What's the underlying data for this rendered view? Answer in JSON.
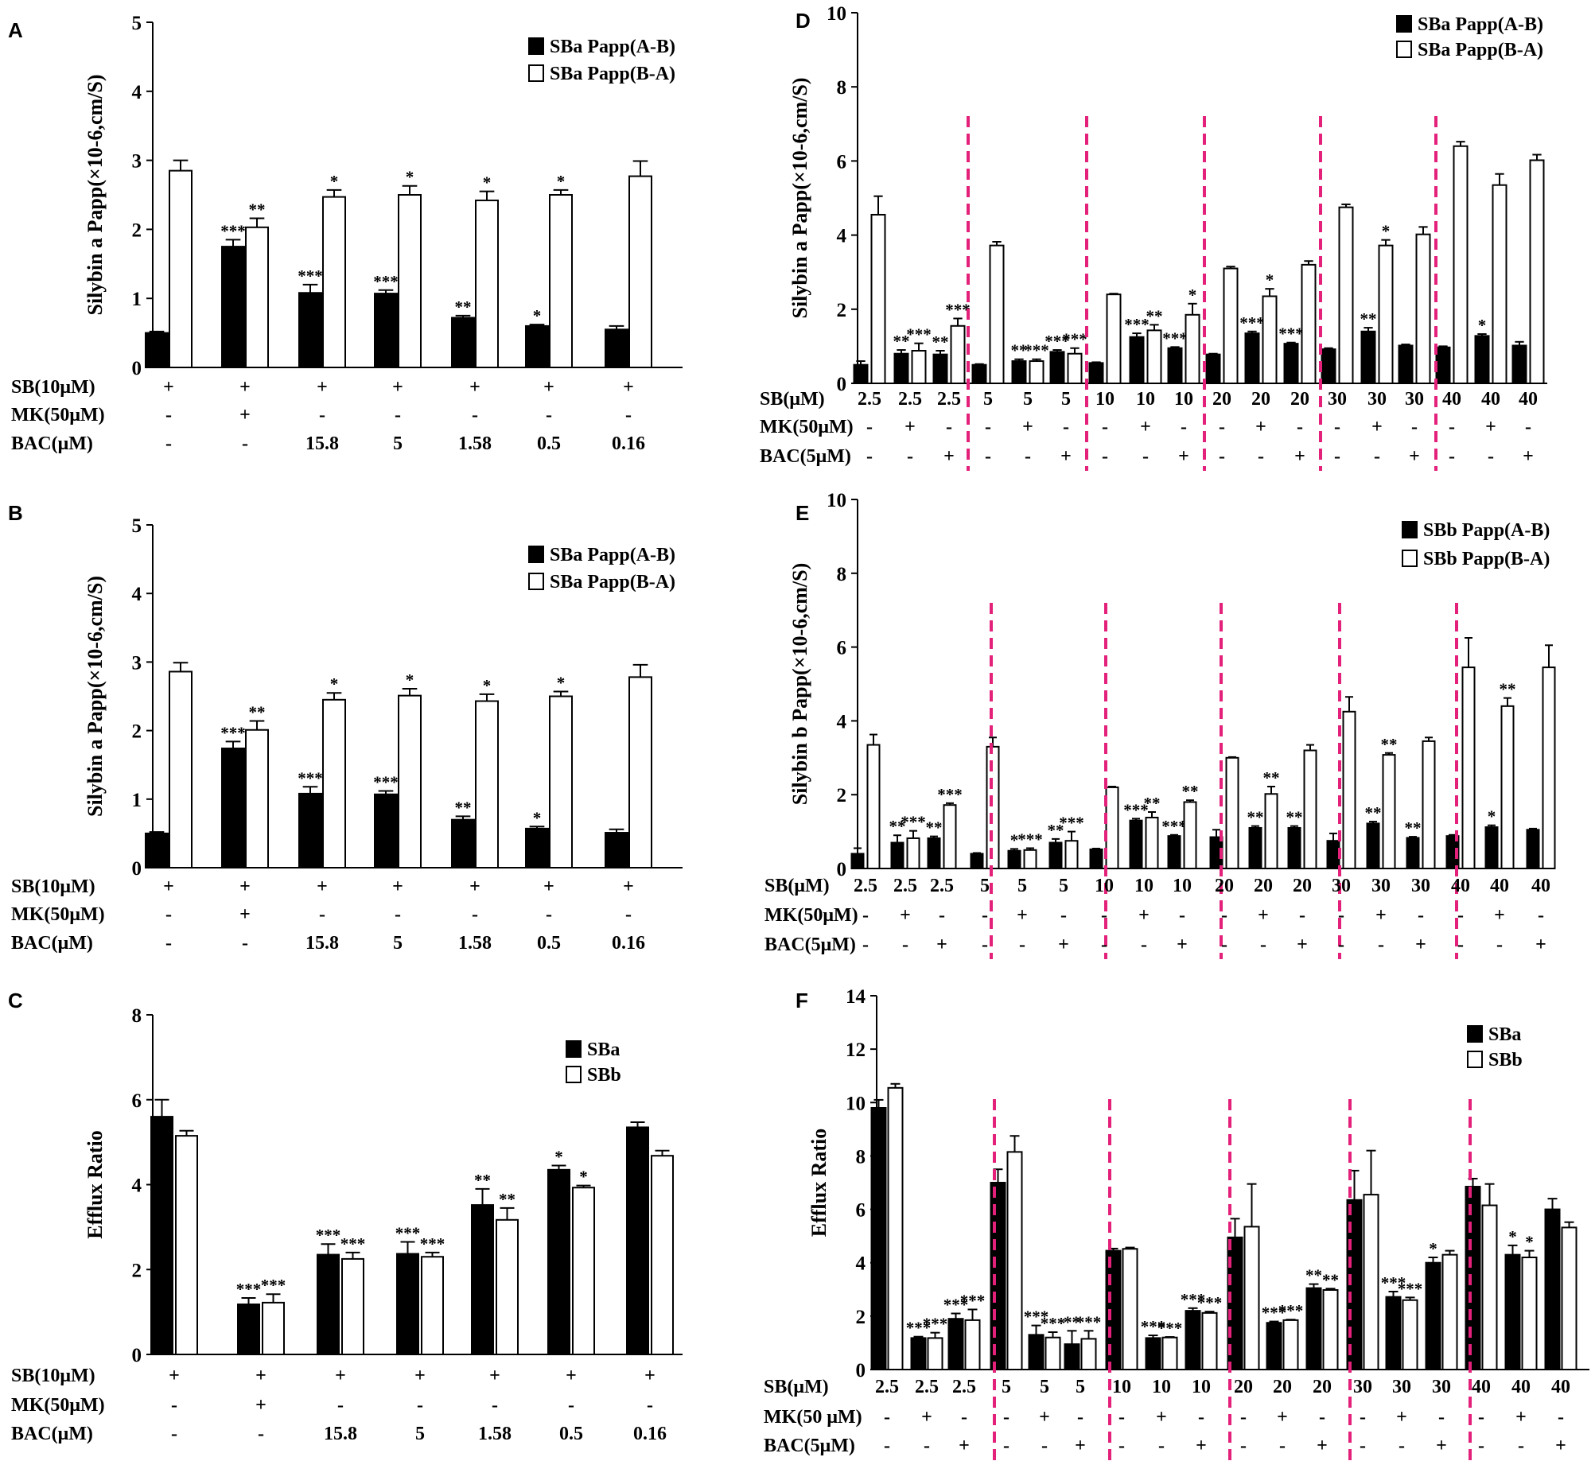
{
  "colors": {
    "filled": "#000000",
    "open": "#ffffff",
    "axis": "#000000",
    "divider": "#e3217a"
  },
  "chart_data": [
    {
      "panel": "A",
      "type": "bar",
      "ylabel": "Silybin a Papp(×10-6,cm/S)",
      "ylim": [
        0,
        5
      ],
      "yticks": [
        "0",
        "1",
        "2",
        "3",
        "4",
        "5"
      ],
      "legend": [
        "SBa Papp(A-B)",
        "SBa Papp(B-A)"
      ],
      "row_labels": [
        "SB(10μM)",
        "MK(50μM)",
        "BAC(μM)"
      ],
      "row_values": [
        [
          "+",
          "+",
          "+",
          "+",
          "+",
          "+",
          "+"
        ],
        [
          "-",
          "+",
          "-",
          "-",
          "-",
          "-",
          "-"
        ],
        [
          "-",
          "-",
          "15.8",
          "5",
          "1.58",
          "0.5",
          "0.16"
        ]
      ],
      "series": [
        {
          "name": "SBa Papp(A-B)",
          "values": [
            0.5,
            1.75,
            1.08,
            1.07,
            0.72,
            0.6,
            0.55
          ],
          "errors": [
            0.02,
            0.1,
            0.12,
            0.05,
            0.03,
            0.02,
            0.05
          ],
          "stars": [
            "",
            "***",
            "***",
            "***",
            "**",
            "*",
            ""
          ]
        },
        {
          "name": "SBa Papp(B-A)",
          "values": [
            2.85,
            2.03,
            2.47,
            2.5,
            2.42,
            2.5,
            2.77
          ],
          "errors": [
            0.15,
            0.13,
            0.1,
            0.13,
            0.13,
            0.07,
            0.22
          ],
          "stars": [
            "",
            "**",
            "*",
            "*",
            "*",
            "*",
            ""
          ]
        }
      ]
    },
    {
      "panel": "B",
      "type": "bar",
      "ylabel": "Silybin a Papp(×10-6,cm/S)",
      "ylim": [
        0,
        5
      ],
      "yticks": [
        "0",
        "1",
        "2",
        "3",
        "4",
        "5"
      ],
      "legend": [
        "SBa Papp(A-B)",
        "SBa Papp(B-A)"
      ],
      "row_labels": [
        "SB(10μM)",
        "MK(50μM)",
        "BAC(μM)"
      ],
      "row_values": [
        [
          "+",
          "+",
          "+",
          "+",
          "+",
          "+",
          "+"
        ],
        [
          "-",
          "+",
          "-",
          "-",
          "-",
          "-",
          "-"
        ],
        [
          "-",
          "-",
          "15.8",
          "5",
          "1.58",
          "0.5",
          "0.16"
        ]
      ],
      "series": [
        {
          "name": "SBa Papp(A-B)",
          "values": [
            0.5,
            1.74,
            1.08,
            1.07,
            0.7,
            0.57,
            0.51
          ],
          "errors": [
            0.02,
            0.1,
            0.1,
            0.05,
            0.05,
            0.03,
            0.05
          ],
          "stars": [
            "",
            "***",
            "***",
            "***",
            "**",
            "*",
            ""
          ]
        },
        {
          "name": "SBa Papp(B-A)",
          "values": [
            2.86,
            2.01,
            2.45,
            2.51,
            2.43,
            2.5,
            2.78
          ],
          "errors": [
            0.13,
            0.13,
            0.1,
            0.1,
            0.1,
            0.07,
            0.18
          ],
          "stars": [
            "",
            "**",
            "*",
            "*",
            "*",
            "*",
            ""
          ]
        }
      ]
    },
    {
      "panel": "C",
      "type": "bar",
      "ylabel": "Efflux Ratio",
      "ylim": [
        0,
        8
      ],
      "yticks": [
        "0",
        "2",
        "4",
        "6",
        "8"
      ],
      "legend": [
        "SBa",
        "SBb"
      ],
      "row_labels": [
        "SB(10μM)",
        "MK(50μM)",
        "BAC(μM)"
      ],
      "row_values": [
        [
          "+",
          "+",
          "+",
          "+",
          "+",
          "+",
          "+"
        ],
        [
          "-",
          "+",
          "-",
          "-",
          "-",
          "-",
          "-"
        ],
        [
          "-",
          "-",
          "15.8",
          "5",
          "1.58",
          "0.5",
          "0.16"
        ]
      ],
      "series": [
        {
          "name": "SBa",
          "values": [
            5.6,
            1.18,
            2.35,
            2.37,
            3.52,
            4.35,
            5.35
          ],
          "errors": [
            0.4,
            0.15,
            0.25,
            0.28,
            0.38,
            0.1,
            0.12
          ],
          "stars": [
            "",
            "***",
            "***",
            "***",
            "**",
            "*",
            ""
          ]
        },
        {
          "name": "SBb",
          "values": [
            5.15,
            1.22,
            2.25,
            2.3,
            3.17,
            3.93,
            4.68
          ],
          "errors": [
            0.12,
            0.2,
            0.15,
            0.1,
            0.28,
            0.05,
            0.12
          ],
          "stars": [
            "",
            "***",
            "***",
            "***",
            "**",
            "*",
            ""
          ]
        }
      ]
    },
    {
      "panel": "D",
      "type": "bar",
      "ylabel": "Silybin a Papp(×10-6,cm/S)",
      "ylim": [
        0,
        10
      ],
      "yticks": [
        "0",
        "2",
        "4",
        "6",
        "8",
        "10"
      ],
      "legend": [
        "SBa Papp(A-B)",
        "SBa Papp(B-A)"
      ],
      "row_labels": [
        "SB(μM)",
        "MK(50μM)",
        "BAC(5μM)"
      ],
      "row_values": [
        [
          "2.5",
          "2.5",
          "2.5",
          "5",
          "5",
          "5",
          "10",
          "10",
          "10",
          "20",
          "20",
          "20",
          "30",
          "30",
          "30",
          "40",
          "40",
          "40"
        ],
        [
          "-",
          "+",
          "-",
          "-",
          "+",
          "-",
          "-",
          "+",
          "-",
          "-",
          "+",
          "-",
          "-",
          "+",
          "-",
          "-",
          "+",
          "-"
        ],
        [
          "-",
          "-",
          "+",
          "-",
          "-",
          "+",
          "-",
          "-",
          "+",
          "-",
          "-",
          "+",
          "-",
          "-",
          "+",
          "-",
          "-",
          "+"
        ]
      ],
      "series": [
        {
          "name": "SBa Papp(A-B)",
          "values": [
            0.5,
            0.8,
            0.78,
            0.5,
            0.6,
            0.85,
            0.55,
            1.25,
            0.95,
            0.78,
            1.35,
            1.07,
            0.92,
            1.4,
            1.02,
            0.97,
            1.28,
            1.02
          ],
          "errors": [
            0.1,
            0.1,
            0.1,
            0.02,
            0.05,
            0.05,
            0.02,
            0.1,
            0.03,
            0.02,
            0.05,
            0.03,
            0.03,
            0.1,
            0.03,
            0.03,
            0.05,
            0.1
          ],
          "stars": [
            "",
            "**",
            "**",
            "",
            "**",
            "***",
            "",
            "***",
            "***",
            "",
            "***",
            "***",
            "",
            "**",
            "",
            "",
            "*",
            ""
          ]
        },
        {
          "name": "SBa Papp(B-A)",
          "values": [
            4.55,
            0.88,
            1.55,
            3.72,
            0.6,
            0.8,
            2.4,
            1.43,
            1.85,
            3.1,
            2.35,
            3.2,
            4.75,
            3.72,
            4.02,
            6.4,
            5.35,
            6.02
          ],
          "errors": [
            0.5,
            0.2,
            0.2,
            0.1,
            0.05,
            0.15,
            0.02,
            0.15,
            0.3,
            0.05,
            0.2,
            0.1,
            0.08,
            0.15,
            0.2,
            0.12,
            0.3,
            0.15
          ],
          "stars": [
            "",
            "***",
            "***",
            "",
            "***",
            "***",
            "",
            "**",
            "*",
            "",
            "*",
            "",
            "",
            "*",
            "",
            "",
            "",
            ""
          ]
        }
      ],
      "dividers": [
        "2.5|5",
        "5|10",
        "10|20",
        "20|30",
        "30|40"
      ]
    },
    {
      "panel": "E",
      "type": "bar",
      "ylabel": "Silybin b Papp(×10-6,cm/S)",
      "ylim": [
        0,
        10
      ],
      "yticks": [
        "0",
        "2",
        "4",
        "6",
        "8",
        "10"
      ],
      "legend": [
        "SBb Papp(A-B)",
        "SBb Papp(B-A)"
      ],
      "row_labels": [
        "SB(μM)",
        "MK(50μM)",
        "BAC(5μM)"
      ],
      "row_values": [
        [
          "2.5",
          "2.5",
          "2.5",
          "5",
          "5",
          "5",
          "10",
          "10",
          "10",
          "20",
          "20",
          "20",
          "30",
          "30",
          "30",
          "40",
          "40",
          "40"
        ],
        [
          "-",
          "+",
          "-",
          "-",
          "+",
          "-",
          "-",
          "+",
          "-",
          "-",
          "+",
          "-",
          "-",
          "+",
          "-",
          "-",
          "+",
          "-"
        ],
        [
          "-",
          "-",
          "+",
          "-",
          "-",
          "+",
          "-",
          "-",
          "+",
          "-",
          "-",
          "+",
          "-",
          "-",
          "+",
          "-",
          "-",
          "+"
        ]
      ],
      "series": [
        {
          "name": "SBb Papp(A-B)",
          "values": [
            0.4,
            0.7,
            0.82,
            0.4,
            0.48,
            0.7,
            0.52,
            1.3,
            0.88,
            0.85,
            1.1,
            1.1,
            0.75,
            1.22,
            0.83,
            0.88,
            1.12,
            1.05
          ],
          "errors": [
            0.15,
            0.2,
            0.05,
            0.02,
            0.05,
            0.1,
            0.02,
            0.05,
            0.03,
            0.2,
            0.05,
            0.05,
            0.2,
            0.05,
            0.03,
            0.03,
            0.05,
            0.03
          ],
          "stars": [
            "",
            "**",
            "**",
            "",
            "*",
            "**",
            "",
            "***",
            "***",
            "",
            "**",
            "**",
            "",
            "**",
            "**",
            "",
            "*",
            ""
          ]
        },
        {
          "name": "SBb Papp(B-A)",
          "values": [
            3.35,
            0.82,
            1.72,
            3.3,
            0.5,
            0.75,
            2.2,
            1.38,
            1.8,
            3.0,
            2.02,
            3.2,
            4.25,
            3.08,
            3.45,
            5.45,
            4.4,
            5.45
          ],
          "errors": [
            0.28,
            0.2,
            0.05,
            0.25,
            0.05,
            0.25,
            0.02,
            0.15,
            0.05,
            0.02,
            0.2,
            0.15,
            0.4,
            0.05,
            0.1,
            0.8,
            0.22,
            0.6
          ],
          "stars": [
            "",
            "***",
            "***",
            "",
            "***",
            "***",
            "",
            "**",
            "**",
            "",
            "**",
            "",
            "",
            "**",
            "",
            "",
            "**",
            ""
          ]
        }
      ],
      "dividers": [
        "2.5|5",
        "5|10",
        "10|20",
        "20|30",
        "30|40"
      ]
    },
    {
      "panel": "F",
      "type": "bar",
      "ylabel": "Efflux Ratio",
      "ylim": [
        0,
        14
      ],
      "yticks": [
        "0",
        "2",
        "4",
        "6",
        "8",
        "10",
        "12",
        "14"
      ],
      "legend": [
        "SBa",
        "SBb"
      ],
      "row_labels": [
        "SB(μM)",
        "MK(50 μM)",
        "BAC(5μM)"
      ],
      "row_values": [
        [
          "2.5",
          "2.5",
          "2.5",
          "5",
          "5",
          "5",
          "10",
          "10",
          "10",
          "20",
          "20",
          "20",
          "30",
          "30",
          "30",
          "40",
          "40",
          "40"
        ],
        [
          "-",
          "+",
          "-",
          "-",
          "+",
          "-",
          "-",
          "+",
          "-",
          "-",
          "+",
          "-",
          "-",
          "+",
          "-",
          "-",
          "+",
          "-"
        ],
        [
          "-",
          "-",
          "+",
          "-",
          "-",
          "+",
          "-",
          "-",
          "+",
          "-",
          "-",
          "+",
          "-",
          "-",
          "+",
          "-",
          "-",
          "+"
        ]
      ],
      "series": [
        {
          "name": "SBa",
          "values": [
            9.8,
            1.18,
            1.9,
            7.0,
            1.3,
            0.95,
            4.45,
            1.18,
            2.2,
            4.95,
            1.75,
            3.05,
            6.35,
            2.72,
            4.0,
            6.85,
            4.3,
            6.0
          ],
          "errors": [
            0.3,
            0.05,
            0.2,
            0.5,
            0.35,
            0.5,
            0.08,
            0.1,
            0.1,
            0.7,
            0.05,
            0.15,
            1.1,
            0.2,
            0.2,
            0.3,
            0.35,
            0.4
          ],
          "stars": [
            "",
            "***",
            "***",
            "",
            "***",
            "**",
            "",
            "***",
            "***",
            "",
            "***",
            "**",
            "",
            "***",
            "*",
            "",
            "*",
            ""
          ]
        },
        {
          "name": "SBb",
          "values": [
            10.55,
            1.18,
            1.85,
            8.15,
            1.2,
            1.15,
            4.52,
            1.2,
            2.12,
            5.35,
            1.85,
            2.98,
            6.55,
            2.6,
            4.3,
            6.15,
            4.2,
            5.32
          ],
          "errors": [
            0.15,
            0.2,
            0.4,
            0.6,
            0.2,
            0.3,
            0.05,
            0.02,
            0.05,
            1.6,
            0.02,
            0.05,
            1.65,
            0.1,
            0.15,
            0.8,
            0.25,
            0.2
          ],
          "stars": [
            "",
            "***",
            "***",
            "",
            "***",
            "***",
            "",
            "***",
            "***",
            "",
            "***",
            "**",
            "",
            "***",
            "",
            "",
            "*",
            ""
          ]
        }
      ],
      "dividers": [
        "2.5|5",
        "5|10",
        "10|20",
        "20|30",
        "30|40"
      ]
    }
  ]
}
